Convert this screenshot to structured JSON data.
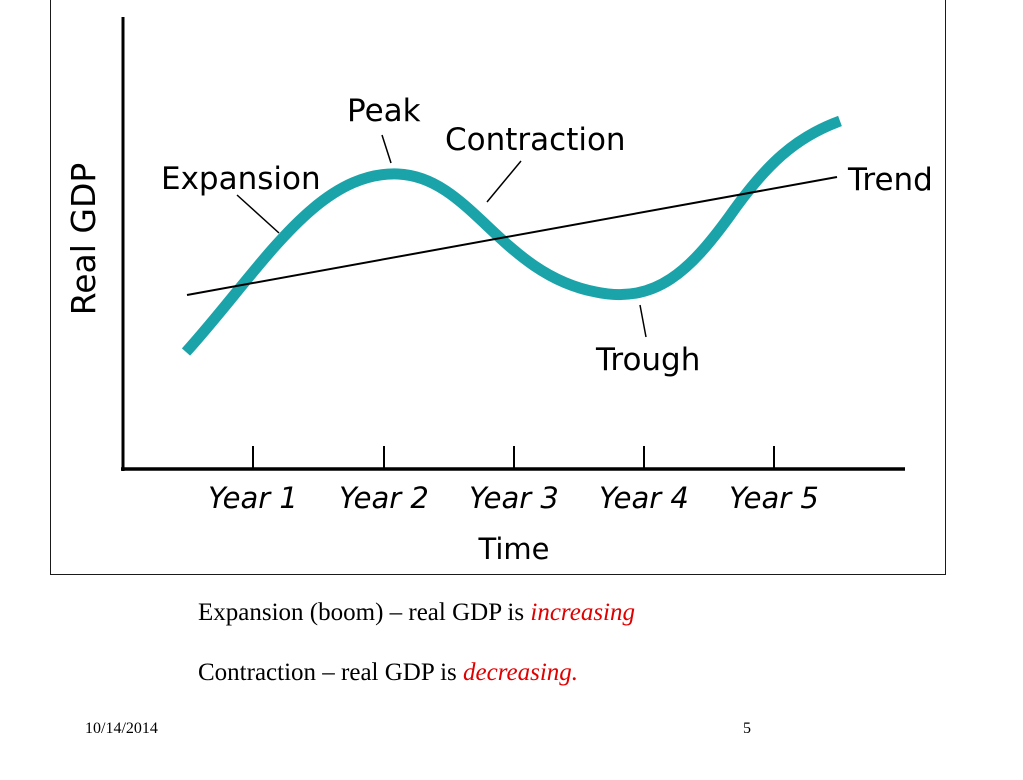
{
  "diagram": {
    "y_axis_label": "Real GDP",
    "x_axis_label": "Time",
    "ticks": [
      "Year 1",
      "Year 2",
      "Year 3",
      "Year 4",
      "Year 5"
    ],
    "labels": {
      "peak": "Peak",
      "contraction": "Contraction",
      "expansion": "Expansion",
      "trough": "Trough",
      "trend": "Trend"
    },
    "colors": {
      "cycle_curve": "#1aa3a8",
      "lines": "#000000"
    }
  },
  "captions": {
    "expansion_prefix": "Expansion (boom) – real GDP is ",
    "expansion_emph": "increasing",
    "contraction_prefix": "Contraction – real GDP is ",
    "contraction_emph": "decreasing."
  },
  "footer": {
    "date": "10/14/2014",
    "page_number": "5"
  }
}
